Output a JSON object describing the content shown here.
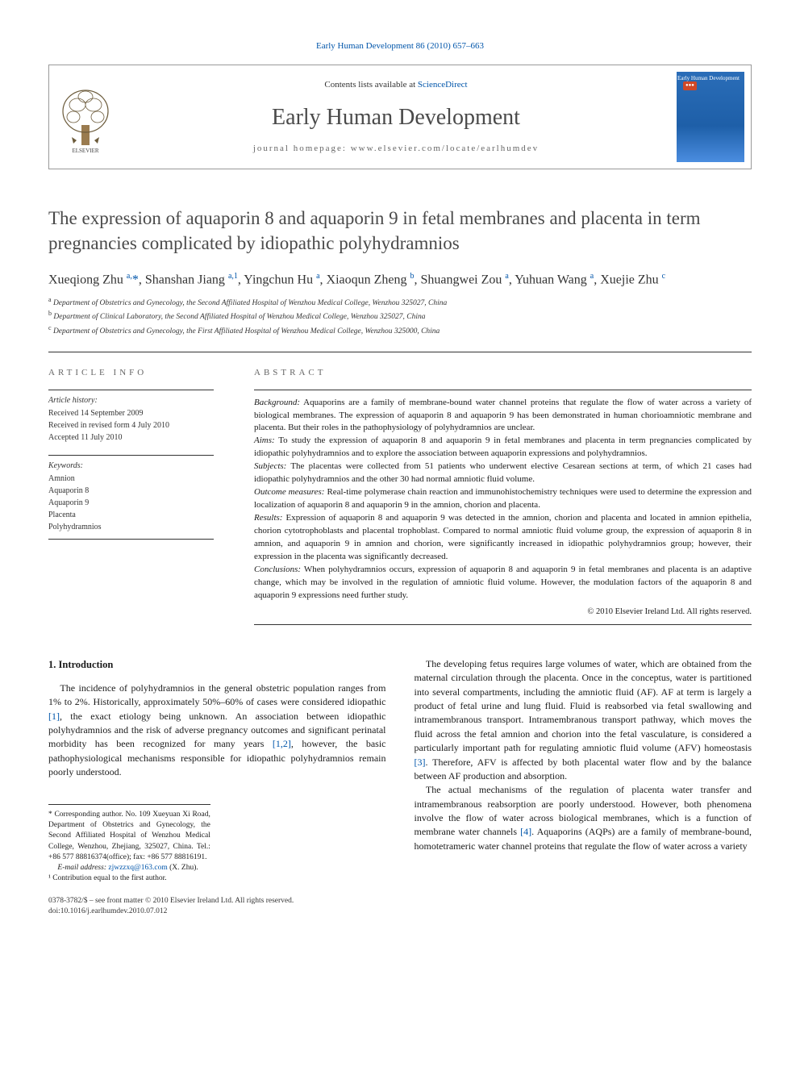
{
  "top_link": "Early Human Development 86 (2010) 657–663",
  "header": {
    "contents_prefix": "Contents lists available at ",
    "contents_link": "ScienceDirect",
    "journal_name": "Early Human Development",
    "homepage_label": "journal homepage: www.elsevier.com/locate/earlhumdev",
    "publisher": "ELSEVIER",
    "cover_text": "Early Human\nDevelopment"
  },
  "title": "The expression of aquaporin 8 and aquaporin 9 in fetal membranes and placenta in term pregnancies complicated by idiopathic polyhydramnios",
  "authors_html": "Xueqiong Zhu <sup>a,</sup><span class='star'>*</span>, Shanshan Jiang <sup>a,1</sup>, Yingchun Hu <sup>a</sup>, Xiaoqun Zheng <sup>b</sup>, Shuangwei Zou <sup>a</sup>, Yuhuan Wang <sup>a</sup>, Xuejie Zhu <sup>c</sup>",
  "affiliations": [
    {
      "sup": "a",
      "text": "Department of Obstetrics and Gynecology, the Second Affiliated Hospital of Wenzhou Medical College, Wenzhou 325027, China"
    },
    {
      "sup": "b",
      "text": "Department of Clinical Laboratory, the Second Affiliated Hospital of Wenzhou Medical College, Wenzhou 325027, China"
    },
    {
      "sup": "c",
      "text": "Department of Obstetrics and Gynecology, the First Affiliated Hospital of Wenzhou Medical College, Wenzhou 325000, China"
    }
  ],
  "article_info": {
    "header": "ARTICLE INFO",
    "history_label": "Article history:",
    "history": [
      "Received 14 September 2009",
      "Received in revised form 4 July 2010",
      "Accepted 11 July 2010"
    ],
    "keywords_label": "Keywords:",
    "keywords": [
      "Amnion",
      "Aquaporin 8",
      "Aquaporin 9",
      "Placenta",
      "Polyhydramnios"
    ]
  },
  "abstract": {
    "header": "ABSTRACT",
    "sections": [
      {
        "label": "Background:",
        "text": " Aquaporins are a family of membrane-bound water channel proteins that regulate the flow of water across a variety of biological membranes. The expression of aquaporin 8 and aquaporin 9 has been demonstrated in human chorioamniotic membrane and placenta. But their roles in the pathophysiology of polyhydramnios are unclear."
      },
      {
        "label": "Aims:",
        "text": " To study the expression of aquaporin 8 and aquaporin 9 in fetal membranes and placenta in term pregnancies complicated by idiopathic polyhydramnios and to explore the association between aquaporin expressions and polyhydramnios."
      },
      {
        "label": "Subjects:",
        "text": " The placentas were collected from 51 patients who underwent elective Cesarean sections at term, of which 21 cases had idiopathic polyhydramnios and the other 30 had normal amniotic fluid volume."
      },
      {
        "label": "Outcome measures:",
        "text": " Real-time polymerase chain reaction and immunohistochemistry techniques were used to determine the expression and localization of aquaporin 8 and aquaporin 9 in the amnion, chorion and placenta."
      },
      {
        "label": "Results:",
        "text": " Expression of aquaporin 8 and aquaporin 9 was detected in the amnion, chorion and placenta and located in amnion epithelia, chorion cytotrophoblasts and placental trophoblast. Compared to normal amniotic fluid volume group, the expression of aquaporin 8 in amnion, and aquaporin 9 in amnion and chorion, were significantly increased in idiopathic polyhydramnios group; however, their expression in the placenta was significantly decreased."
      },
      {
        "label": "Conclusions:",
        "text": " When polyhydramnios occurs, expression of aquaporin 8 and aquaporin 9 in fetal membranes and placenta is an adaptive change, which may be involved in the regulation of amniotic fluid volume. However, the modulation factors of the aquaporin 8 and aquaporin 9 expressions need further study."
      }
    ],
    "copyright": "© 2010 Elsevier Ireland Ltd. All rights reserved."
  },
  "body": {
    "intro_heading": "1. Introduction",
    "left_paras": [
      "The incidence of polyhydramnios in the general obstetric population ranges from 1% to 2%. Historically, approximately 50%–60% of cases were considered idiopathic <span class='ref'>[1]</span>, the exact etiology being unknown. An association between idiopathic polyhydramnios and the risk of adverse pregnancy outcomes and significant perinatal morbidity has been recognized for many years <span class='ref'>[1,2]</span>, however, the basic pathophysiological mechanisms responsible for idiopathic polyhydramnios remain poorly understood."
    ],
    "right_paras": [
      "The developing fetus requires large volumes of water, which are obtained from the maternal circulation through the placenta. Once in the conceptus, water is partitioned into several compartments, including the amniotic fluid (AF). AF at term is largely a product of fetal urine and lung fluid. Fluid is reabsorbed via fetal swallowing and intramembranous transport. Intramembranous transport pathway, which moves the fluid across the fetal amnion and chorion into the fetal vasculature, is considered a particularly important path for regulating amniotic fluid volume (AFV) homeostasis <span class='ref'>[3]</span>. Therefore, AFV is affected by both placental water flow and by the balance between AF production and absorption.",
      "The actual mechanisms of the regulation of placenta water transfer and intramembranous reabsorption are poorly understood. However, both phenomena involve the flow of water across biological membranes, which is a function of membrane water channels <span class='ref'>[4]</span>. Aquaporins (AQPs) are a family of membrane-bound, homotetrameric water channel proteins that regulate the flow of water across a variety"
    ]
  },
  "footnotes": {
    "corresponding": "* Corresponding author. No. 109 Xueyuan Xi Road, Department of Obstetrics and Gynecology, the Second Affiliated Hospital of Wenzhou Medical College, Wenzhou, Zhejiang, 325027, China. Tel.: +86 577 88816374(office); fax: +86 577 88816191.",
    "email_label": "E-mail address:",
    "email": "zjwzzxq@163.com",
    "email_suffix": "(X. Zhu).",
    "note1": "¹ Contribution equal to the first author."
  },
  "bottom": {
    "line1": "0378-3782/$ – see front matter © 2010 Elsevier Ireland Ltd. All rights reserved.",
    "line2": "doi:10.1016/j.earlhumdev.2010.07.012"
  },
  "colors": {
    "link": "#0055aa",
    "text": "#1a1a1a",
    "heading_gray": "#4a4a4a",
    "cover_top": "#2a6db8",
    "cover_bottom": "#4a8de0",
    "cover_badge": "#d04828"
  }
}
